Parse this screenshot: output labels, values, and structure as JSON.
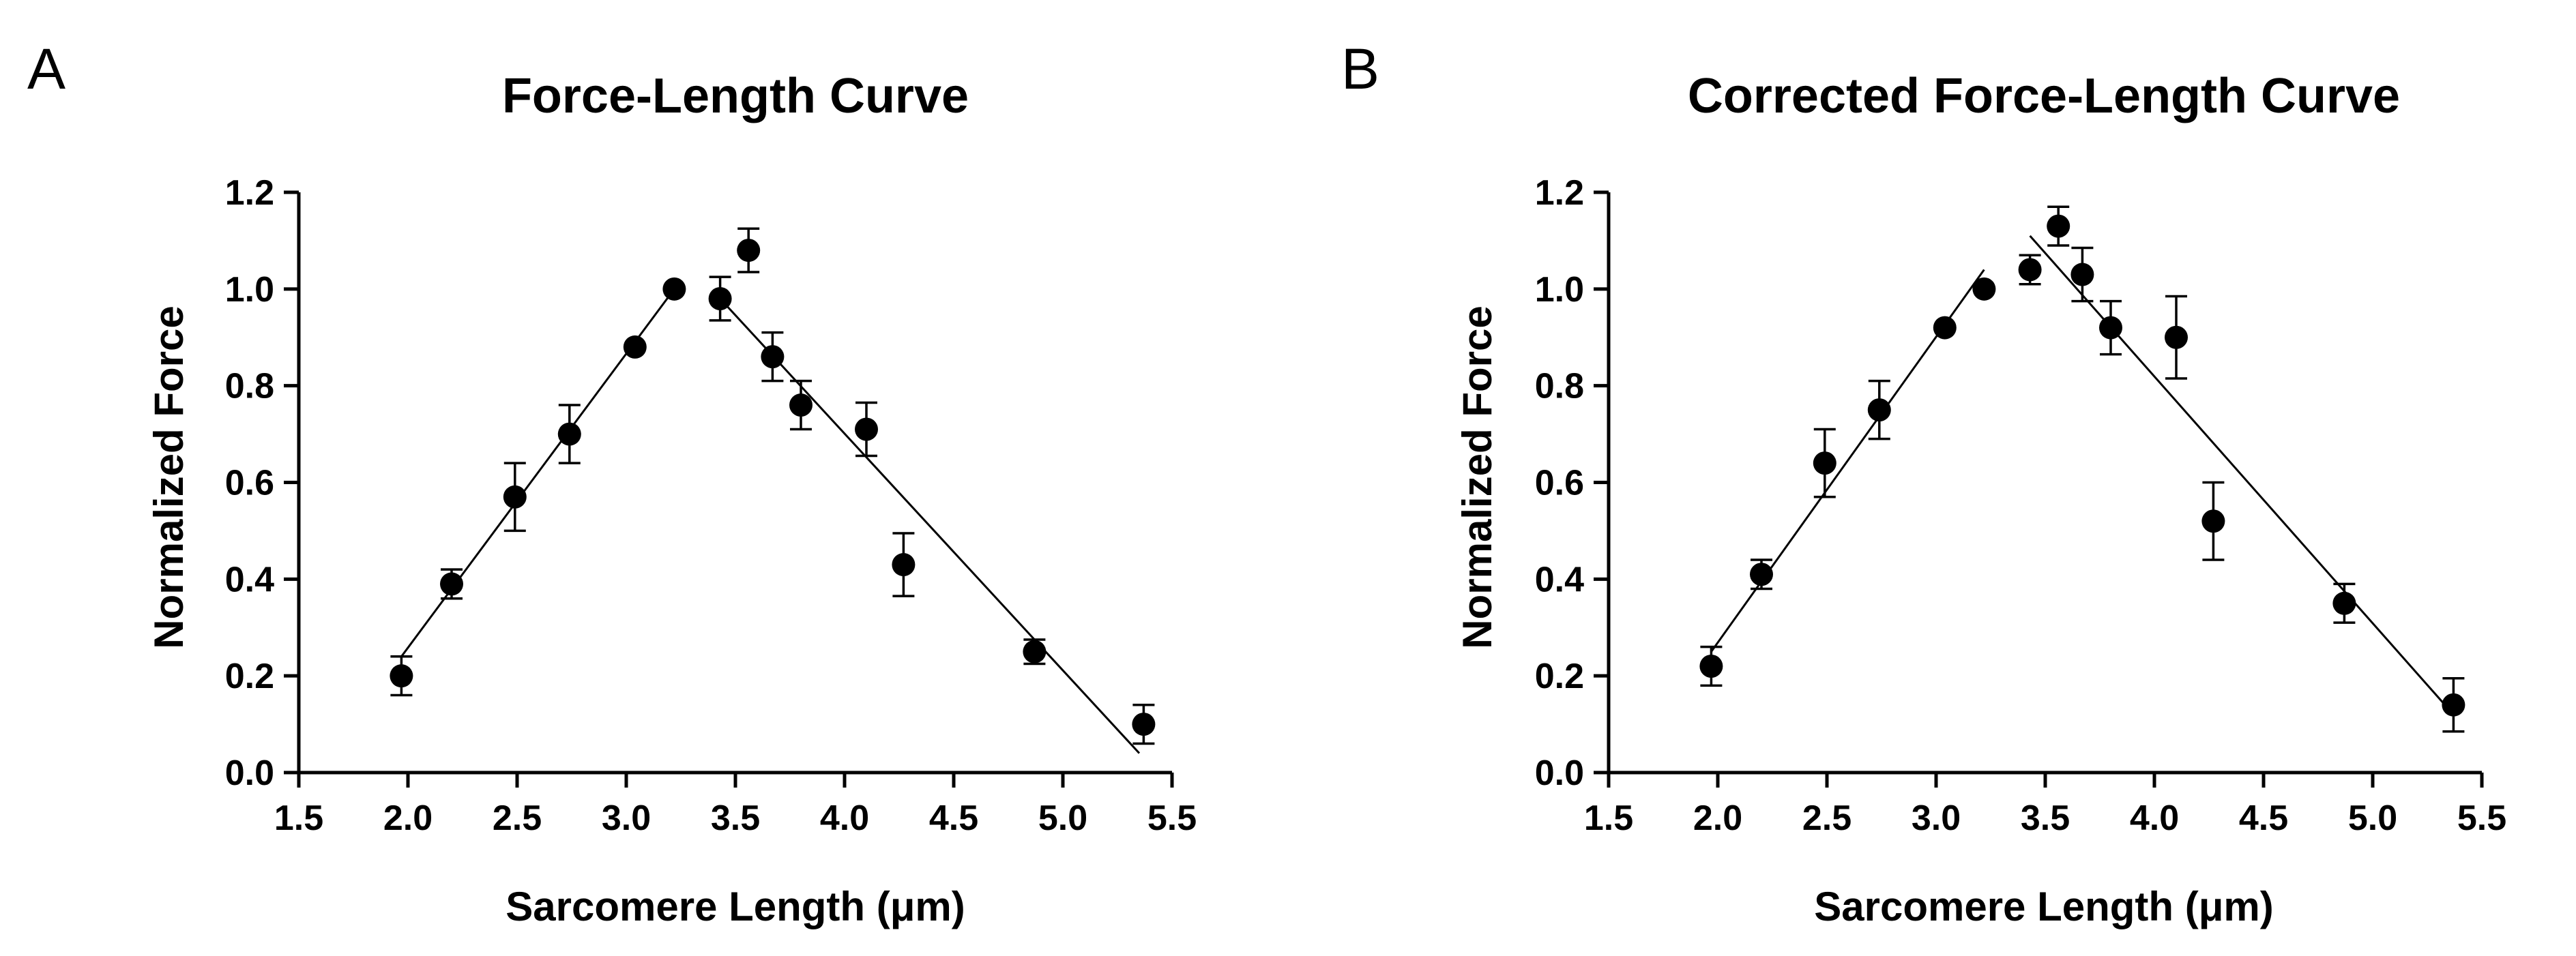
{
  "chart_data": [
    {
      "panel_label": "A",
      "type": "scatter",
      "title": "Force-Length Curve",
      "xlabel": "Sarcomere Length (μm)",
      "ylabel": "Normalized Force",
      "xlim": [
        1.5,
        5.5
      ],
      "ylim": [
        0.0,
        1.2
      ],
      "xticks": [
        "1.5",
        "2.0",
        "2.5",
        "3.0",
        "3.5",
        "4.0",
        "4.5",
        "5.0",
        "5.5"
      ],
      "yticks": [
        "0.0",
        "0.2",
        "0.4",
        "0.6",
        "0.8",
        "1.0",
        "1.2"
      ],
      "grid": false,
      "points": [
        {
          "x": 1.97,
          "y": 0.2,
          "err": 0.04
        },
        {
          "x": 2.2,
          "y": 0.39,
          "err": 0.03
        },
        {
          "x": 2.49,
          "y": 0.57,
          "err": 0.07
        },
        {
          "x": 2.74,
          "y": 0.7,
          "err": 0.06
        },
        {
          "x": 3.04,
          "y": 0.88,
          "err": 0.0
        },
        {
          "x": 3.22,
          "y": 1.0,
          "err": 0.0
        },
        {
          "x": 3.43,
          "y": 0.98,
          "err": 0.045
        },
        {
          "x": 3.56,
          "y": 1.08,
          "err": 0.045
        },
        {
          "x": 3.67,
          "y": 0.86,
          "err": 0.05
        },
        {
          "x": 3.8,
          "y": 0.76,
          "err": 0.05
        },
        {
          "x": 4.1,
          "y": 0.71,
          "err": 0.055
        },
        {
          "x": 4.27,
          "y": 0.43,
          "err": 0.065
        },
        {
          "x": 4.87,
          "y": 0.25,
          "err": 0.025
        },
        {
          "x": 5.37,
          "y": 0.1,
          "err": 0.04
        }
      ],
      "fit_lines": [
        {
          "x": [
            1.97,
            3.22
          ],
          "y": [
            0.24,
            1.0
          ]
        },
        {
          "x": [
            3.43,
            5.35
          ],
          "y": [
            0.98,
            0.04
          ]
        }
      ]
    },
    {
      "panel_label": "B",
      "type": "scatter",
      "title": "Corrected Force-Length Curve",
      "xlabel": "Sarcomere Length (μm)",
      "ylabel": "Normalized Force",
      "xlim": [
        1.5,
        5.5
      ],
      "ylim": [
        0.0,
        1.2
      ],
      "xticks": [
        "1.5",
        "2.0",
        "2.5",
        "3.0",
        "3.5",
        "4.0",
        "4.5",
        "5.0",
        "5.5"
      ],
      "yticks": [
        "0.0",
        "0.2",
        "0.4",
        "0.6",
        "0.8",
        "1.0",
        "1.2"
      ],
      "grid": false,
      "points": [
        {
          "x": 1.97,
          "y": 0.22,
          "err": 0.04
        },
        {
          "x": 2.2,
          "y": 0.41,
          "err": 0.03
        },
        {
          "x": 2.49,
          "y": 0.64,
          "err": 0.07
        },
        {
          "x": 2.74,
          "y": 0.75,
          "err": 0.06
        },
        {
          "x": 3.04,
          "y": 0.92,
          "err": 0.0
        },
        {
          "x": 3.22,
          "y": 1.0,
          "err": 0.0
        },
        {
          "x": 3.43,
          "y": 1.04,
          "err": 0.03
        },
        {
          "x": 3.56,
          "y": 1.13,
          "err": 0.04
        },
        {
          "x": 3.67,
          "y": 1.03,
          "err": 0.055
        },
        {
          "x": 3.8,
          "y": 0.92,
          "err": 0.055
        },
        {
          "x": 4.1,
          "y": 0.9,
          "err": 0.085
        },
        {
          "x": 4.27,
          "y": 0.52,
          "err": 0.08
        },
        {
          "x": 4.87,
          "y": 0.35,
          "err": 0.04
        },
        {
          "x": 5.37,
          "y": 0.14,
          "err": 0.055
        }
      ],
      "fit_lines": [
        {
          "x": [
            1.97,
            3.22
          ],
          "y": [
            0.25,
            1.04
          ]
        },
        {
          "x": [
            3.43,
            5.37
          ],
          "y": [
            1.11,
            0.12
          ]
        }
      ]
    }
  ]
}
